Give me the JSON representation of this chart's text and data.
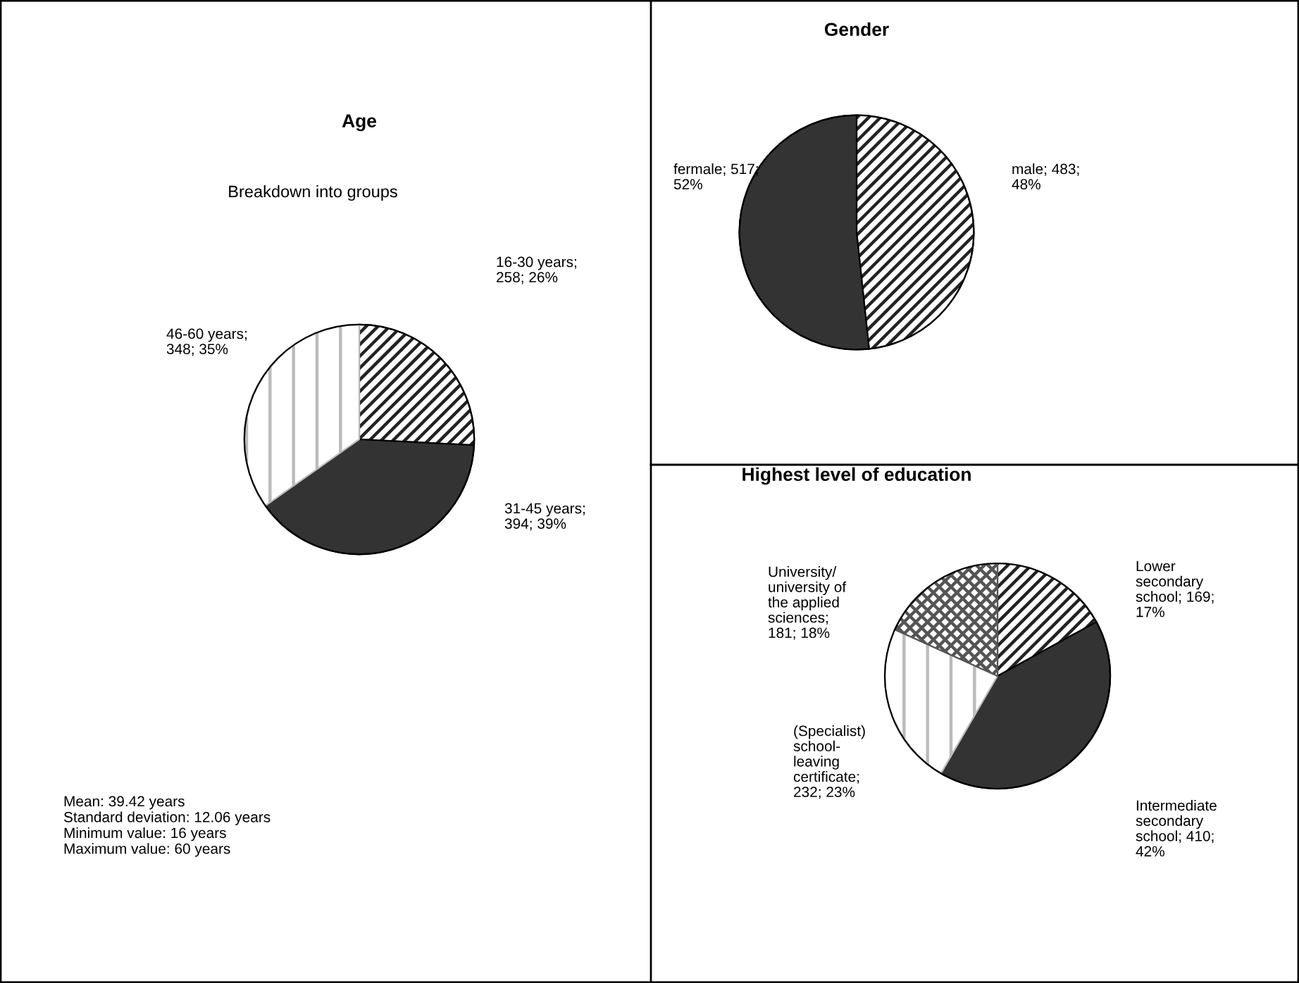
{
  "chart_data": [
    {
      "type": "pie",
      "title": "Age",
      "subtitle": "Breakdown into groups",
      "categories": [
        "16-30 years",
        "31-45 years",
        "46-60 years"
      ],
      "values": [
        258,
        394,
        348
      ],
      "value_labels": [
        ";\n258; 26%",
        ";\n394; 39%",
        ";\n348; 35%"
      ],
      "colors": [
        "#222222",
        "#333333",
        "#bbbbbb"
      ],
      "annotations": [
        "Mean: 39.42 years",
        "Standard deviation: 12.06 years",
        "Minimum value: 16 years",
        "Maximum value: 60 years"
      ]
    },
    {
      "type": "pie",
      "title": "Gender",
      "categories": [
        "male",
        "fermale"
      ],
      "values": [
        483,
        517
      ],
      "value_labels": [
        "483;\n48%",
        "517;\n52%"
      ],
      "colors": [
        "#222222",
        "#333333"
      ]
    },
    {
      "type": "pie",
      "title": "Highest level of education",
      "categories": [
        "Lower\nsecondary\nschool",
        "Intermediate\nsecondary\nschool",
        "(Specialist)\nschool-\nleaving\ncertificate",
        "University/\nuniversity of\nthe applied\nsciences"
      ],
      "values": [
        169,
        410,
        232,
        181
      ],
      "value_labels": [
        "169;\n17%",
        "410;\n42%",
        ";\n232; 23%",
        ";\n181; 18%"
      ],
      "colors": [
        "#222222",
        "#333333",
        "#bbbbbb",
        "#555555"
      ]
    }
  ]
}
